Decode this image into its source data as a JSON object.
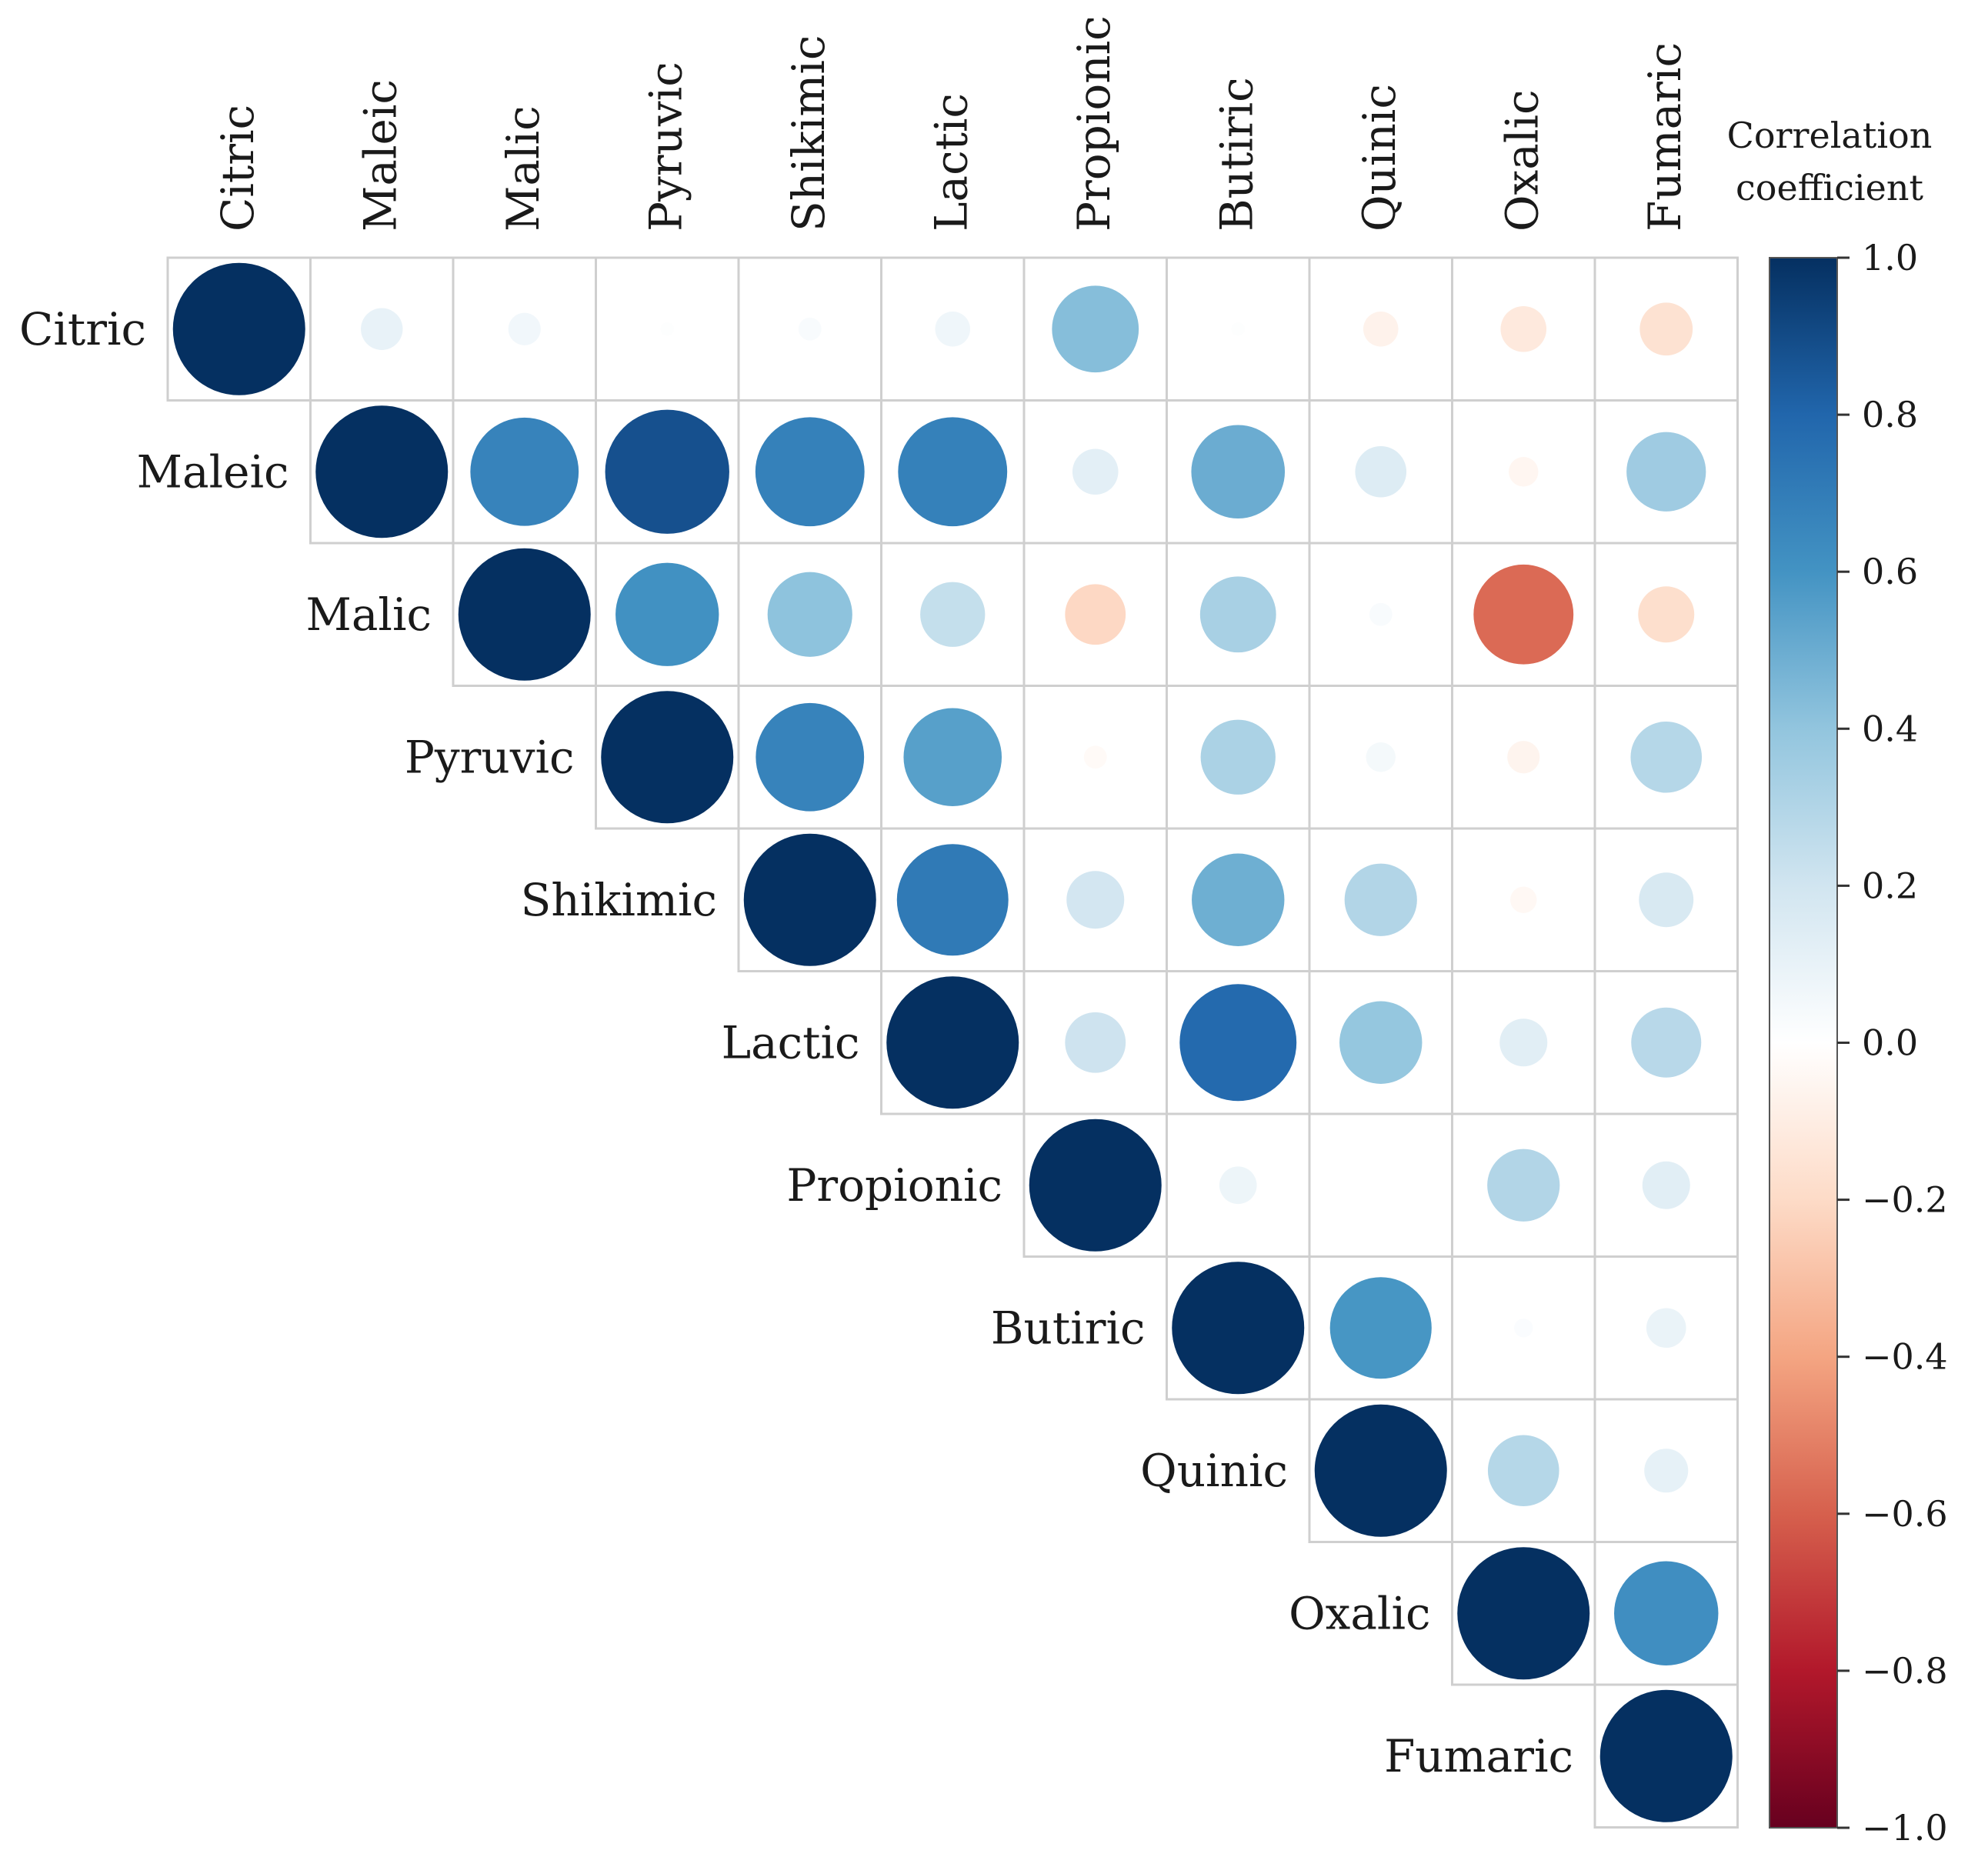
{
  "chart_data": {
    "type": "heatmap",
    "subtype": "correlation-circles-upper-triangle",
    "variables": [
      "Citric",
      "Maleic",
      "Malic",
      "Pyruvic",
      "Shikimic",
      "Lactic",
      "Propionic",
      "Butiric",
      "Quinic",
      "Oxalic",
      "Fumaric"
    ],
    "matrix": [
      [
        1.0,
        0.1,
        0.06,
        0.01,
        0.03,
        0.07,
        0.43,
        0.01,
        -0.07,
        -0.12,
        -0.16
      ],
      [
        null,
        1.0,
        0.67,
        0.88,
        0.68,
        0.68,
        0.12,
        0.5,
        0.15,
        -0.05,
        0.36
      ],
      [
        null,
        null,
        1.0,
        0.61,
        0.41,
        0.24,
        -0.21,
        0.33,
        0.03,
        -0.57,
        -0.18
      ],
      [
        null,
        null,
        null,
        1.0,
        0.67,
        0.55,
        -0.03,
        0.32,
        0.05,
        -0.06,
        0.29
      ],
      [
        null,
        null,
        null,
        null,
        1.0,
        0.71,
        0.19,
        0.49,
        0.3,
        -0.04,
        0.17
      ],
      [
        null,
        null,
        null,
        null,
        null,
        1.0,
        0.21,
        0.78,
        0.39,
        0.13,
        0.28
      ],
      [
        null,
        null,
        null,
        null,
        null,
        null,
        1.0,
        0.08,
        0.0,
        0.3,
        0.13
      ],
      [
        null,
        null,
        null,
        null,
        null,
        null,
        null,
        1.0,
        0.59,
        0.02,
        0.09
      ],
      [
        null,
        null,
        null,
        null,
        null,
        null,
        null,
        null,
        1.0,
        0.29,
        0.11
      ],
      [
        null,
        null,
        null,
        null,
        null,
        null,
        null,
        null,
        null,
        1.0,
        0.62
      ],
      [
        null,
        null,
        null,
        null,
        null,
        null,
        null,
        null,
        null,
        null,
        1.0
      ]
    ],
    "colorbar": {
      "title_line1": "Correlation",
      "title_line2": "coefficient",
      "range": [
        -1.0,
        1.0
      ],
      "ticks": [
        1.0,
        0.8,
        0.6,
        0.4,
        0.2,
        0.0,
        -0.2,
        -0.4,
        -0.6,
        -0.8,
        -1.0
      ],
      "tick_labels": [
        "1.0",
        "0.8",
        "0.6",
        "0.4",
        "0.2",
        "0.0",
        "−0.2",
        "−0.4",
        "−0.6",
        "−0.8",
        "−1.0"
      ]
    },
    "palette": {
      "stops": [
        "#67001f",
        "#b2182b",
        "#d6604d",
        "#f4a582",
        "#fddbc7",
        "#ffffff",
        "#d1e5f0",
        "#92c5de",
        "#4393c3",
        "#2166ac",
        "#053061"
      ],
      "positive_strong": "#053061",
      "negative_strong": "#67001f"
    }
  }
}
